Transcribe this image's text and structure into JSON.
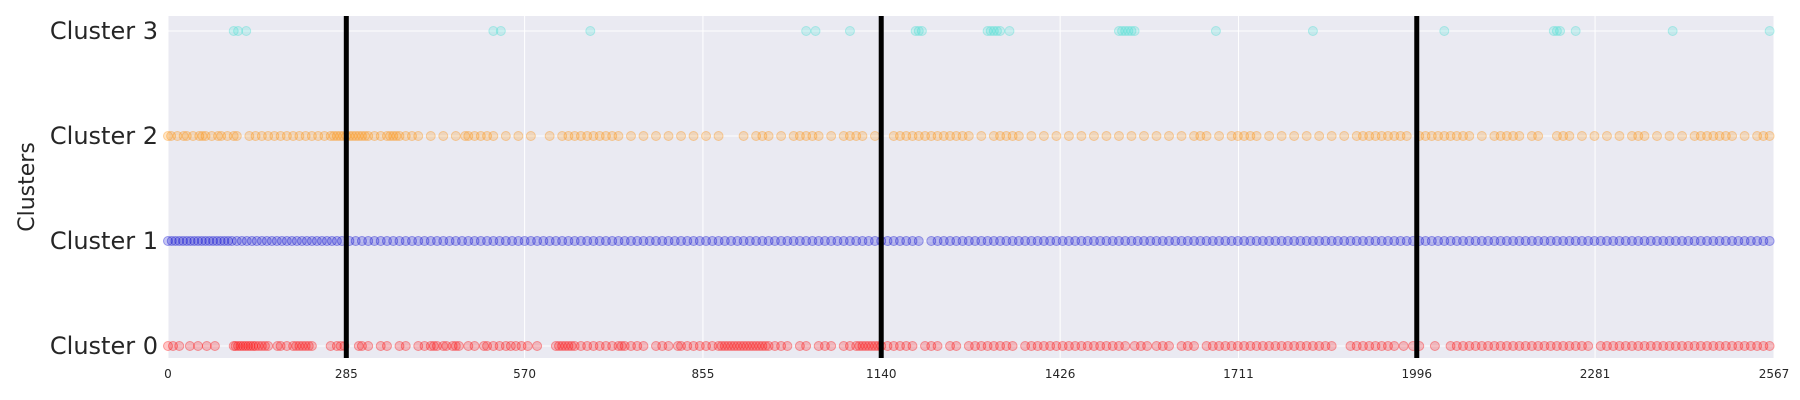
{
  "chart_data": {
    "type": "scatter",
    "ylabel": "Clusters",
    "xlabel": "",
    "xlim": [
      0,
      2567
    ],
    "x_ticks": [
      0,
      285,
      570,
      855,
      1140,
      1426,
      1711,
      1996,
      2281,
      2567
    ],
    "y_categories": [
      "Cluster 0",
      "Cluster 1",
      "Cluster 2",
      "Cluster 3"
    ],
    "grid": true,
    "vertical_lines": [
      285,
      1140,
      1996
    ],
    "series": [
      {
        "color": "#ff0000",
        "y": 0,
        "x": [
          0,
          8,
          18,
          35,
          48,
          62,
          75,
          105,
          108,
          112,
          116,
          120,
          124,
          128,
          132,
          136,
          140,
          145,
          150,
          155,
          160,
          175,
          180,
          190,
          200,
          205,
          210,
          215,
          220,
          225,
          230,
          260,
          270,
          276,
          282,
          305,
          310,
          320,
          340,
          350,
          370,
          380,
          400,
          410,
          420,
          425,
          430,
          440,
          445,
          455,
          460,
          465,
          480,
          490,
          505,
          510,
          520,
          530,
          540,
          548,
          556,
          565,
          575,
          590,
          620,
          625,
          630,
          635,
          640,
          645,
          650,
          660,
          670,
          680,
          690,
          700,
          710,
          720,
          725,
          730,
          740,
          750,
          760,
          780,
          790,
          800,
          815,
          820,
          830,
          840,
          850,
          860,
          870,
          880,
          885,
          890,
          895,
          900,
          905,
          910,
          915,
          920,
          925,
          930,
          935,
          940,
          945,
          950,
          955,
          960,
          970,
          980,
          990,
          1010,
          1020,
          1040,
          1050,
          1060,
          1080,
          1090,
          1100,
          1105,
          1110,
          1115,
          1120,
          1125,
          1130,
          1135,
          1140,
          1150,
          1160,
          1170,
          1180,
          1190,
          1210,
          1220,
          1230,
          1250,
          1260,
          1280,
          1290,
          1300,
          1310,
          1320,
          1330,
          1340,
          1350,
          1370,
          1380,
          1390,
          1400,
          1410,
          1420,
          1430,
          1440,
          1450,
          1460,
          1470,
          1480,
          1490,
          1500,
          1510,
          1520,
          1530,
          1545,
          1555,
          1565,
          1580,
          1590,
          1600,
          1620,
          1630,
          1640,
          1660,
          1670,
          1680,
          1690,
          1700,
          1710,
          1720,
          1730,
          1740,
          1750,
          1760,
          1770,
          1780,
          1790,
          1800,
          1810,
          1820,
          1830,
          1840,
          1850,
          1860,
          1890,
          1900,
          1910,
          1920,
          1930,
          1940,
          1950,
          1960,
          1975,
          1990,
          2000,
          2025,
          2050,
          2060,
          2070,
          2080,
          2090,
          2100,
          2110,
          2120,
          2130,
          2140,
          2150,
          2160,
          2170,
          2180,
          2190,
          2200,
          2210,
          2220,
          2230,
          2240,
          2250,
          2260,
          2270,
          2290,
          2300,
          2310,
          2320,
          2330,
          2340,
          2350,
          2360,
          2370,
          2380,
          2390,
          2400,
          2410,
          2420,
          2430,
          2440,
          2450,
          2460,
          2470,
          2480,
          2490,
          2500,
          2510,
          2520,
          2530,
          2540,
          2550,
          2560
        ]
      },
      {
        "color": "#0000cd",
        "y": 1,
        "x": [
          0,
          6,
          12,
          18,
          24,
          30,
          36,
          42,
          48,
          54,
          60,
          66,
          72,
          78,
          84,
          90,
          96,
          102,
          110,
          118,
          126,
          134,
          142,
          150,
          158,
          166,
          174,
          182,
          190,
          198,
          206,
          214,
          222,
          230,
          238,
          246,
          254,
          262,
          270,
          278,
          290,
          300,
          310,
          320,
          330,
          340,
          350,
          360,
          370,
          380,
          390,
          400,
          410,
          420,
          430,
          440,
          450,
          460,
          470,
          480,
          490,
          500,
          510,
          520,
          530,
          540,
          550,
          560,
          570,
          580,
          590,
          600,
          610,
          620,
          630,
          640,
          650,
          660,
          670,
          680,
          690,
          700,
          710,
          720,
          730,
          740,
          750,
          760,
          770,
          780,
          790,
          800,
          810,
          820,
          830,
          840,
          850,
          860,
          870,
          880,
          890,
          900,
          910,
          920,
          930,
          940,
          950,
          960,
          970,
          980,
          990,
          1000,
          1010,
          1020,
          1030,
          1040,
          1050,
          1060,
          1070,
          1080,
          1090,
          1100,
          1110,
          1120,
          1130,
          1140,
          1150,
          1160,
          1170,
          1180,
          1190,
          1200,
          1220,
          1230,
          1240,
          1250,
          1260,
          1270,
          1280,
          1290,
          1300,
          1310,
          1320,
          1330,
          1340,
          1350,
          1360,
          1370,
          1380,
          1390,
          1400,
          1410,
          1420,
          1430,
          1440,
          1450,
          1460,
          1470,
          1480,
          1490,
          1500,
          1510,
          1520,
          1530,
          1540,
          1550,
          1560,
          1570,
          1580,
          1590,
          1600,
          1610,
          1620,
          1630,
          1640,
          1650,
          1660,
          1670,
          1680,
          1690,
          1700,
          1710,
          1720,
          1730,
          1740,
          1750,
          1760,
          1770,
          1780,
          1790,
          1800,
          1810,
          1820,
          1830,
          1840,
          1850,
          1860,
          1870,
          1880,
          1890,
          1900,
          1910,
          1920,
          1930,
          1940,
          1950,
          1960,
          1970,
          1980,
          1990,
          2000,
          2010,
          2020,
          2030,
          2040,
          2050,
          2060,
          2070,
          2080,
          2090,
          2100,
          2110,
          2120,
          2130,
          2140,
          2150,
          2160,
          2170,
          2180,
          2190,
          2200,
          2210,
          2220,
          2230,
          2240,
          2250,
          2260,
          2270,
          2280,
          2290,
          2300,
          2310,
          2320,
          2330,
          2340,
          2350,
          2360,
          2370,
          2380,
          2390,
          2400,
          2410,
          2420,
          2430,
          2440,
          2450,
          2460,
          2470,
          2480,
          2490,
          2500,
          2510,
          2520,
          2530,
          2540,
          2550,
          2560
        ]
      },
      {
        "color": "#ff8c00",
        "y": 2,
        "x": [
          0,
          5,
          15,
          25,
          30,
          40,
          50,
          55,
          60,
          70,
          80,
          85,
          95,
          105,
          110,
          130,
          140,
          150,
          160,
          170,
          180,
          190,
          200,
          210,
          220,
          230,
          240,
          250,
          260,
          265,
          270,
          275,
          280,
          285,
          290,
          295,
          300,
          305,
          310,
          315,
          320,
          330,
          340,
          350,
          355,
          360,
          365,
          370,
          380,
          390,
          400,
          420,
          440,
          460,
          475,
          480,
          490,
          500,
          510,
          520,
          540,
          560,
          580,
          610,
          630,
          640,
          650,
          660,
          670,
          680,
          690,
          700,
          710,
          720,
          740,
          760,
          780,
          800,
          820,
          840,
          860,
          880,
          920,
          940,
          950,
          960,
          980,
          1000,
          1010,
          1020,
          1030,
          1040,
          1060,
          1080,
          1090,
          1100,
          1110,
          1130,
          1160,
          1170,
          1180,
          1190,
          1200,
          1210,
          1220,
          1230,
          1240,
          1250,
          1260,
          1270,
          1280,
          1300,
          1320,
          1330,
          1340,
          1350,
          1360,
          1380,
          1400,
          1420,
          1440,
          1460,
          1480,
          1500,
          1520,
          1540,
          1560,
          1580,
          1600,
          1620,
          1640,
          1650,
          1660,
          1680,
          1700,
          1710,
          1720,
          1730,
          1740,
          1760,
          1780,
          1800,
          1820,
          1840,
          1860,
          1880,
          1900,
          1910,
          1920,
          1930,
          1940,
          1950,
          1960,
          1970,
          1980,
          2000,
          2010,
          2020,
          2030,
          2040,
          2050,
          2060,
          2070,
          2080,
          2100,
          2120,
          2130,
          2140,
          2150,
          2160,
          2180,
          2190,
          2220,
          2230,
          2240,
          2260,
          2280,
          2300,
          2320,
          2340,
          2350,
          2360,
          2380,
          2400,
          2420,
          2440,
          2450,
          2460,
          2470,
          2480,
          2490,
          2500,
          2520,
          2540,
          2550,
          2560
        ]
      },
      {
        "color": "#40e0d0",
        "y": 3,
        "x": [
          105,
          112,
          125,
          520,
          532,
          675,
          1020,
          1035,
          1090,
          1195,
          1200,
          1205,
          1310,
          1315,
          1320,
          1325,
          1330,
          1345,
          1520,
          1525,
          1530,
          1535,
          1540,
          1545,
          1675,
          1830,
          2040,
          2215,
          2220,
          2225,
          2250,
          2405,
          2560
        ]
      }
    ]
  }
}
